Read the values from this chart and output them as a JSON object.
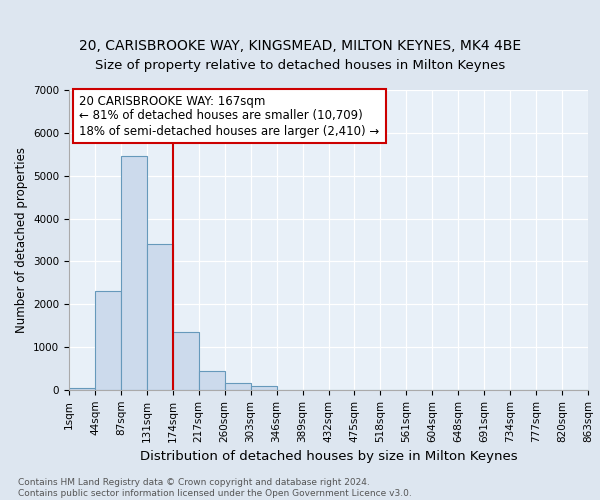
{
  "title_line1": "20, CARISBROOKE WAY, KINGSMEAD, MILTON KEYNES, MK4 4BE",
  "title_line2": "Size of property relative to detached houses in Milton Keynes",
  "xlabel": "Distribution of detached houses by size in Milton Keynes",
  "ylabel": "Number of detached properties",
  "footnote": "Contains HM Land Registry data © Crown copyright and database right 2024.\nContains public sector information licensed under the Open Government Licence v3.0.",
  "bin_labels": [
    "1sqm",
    "44sqm",
    "87sqm",
    "131sqm",
    "174sqm",
    "217sqm",
    "260sqm",
    "303sqm",
    "346sqm",
    "389sqm",
    "432sqm",
    "475sqm",
    "518sqm",
    "561sqm",
    "604sqm",
    "648sqm",
    "691sqm",
    "734sqm",
    "777sqm",
    "820sqm",
    "863sqm"
  ],
  "bar_values": [
    50,
    2300,
    5450,
    3400,
    1350,
    450,
    170,
    90,
    0,
    0,
    0,
    0,
    0,
    0,
    0,
    0,
    0,
    0,
    0,
    0
  ],
  "bar_color": "#ccdaec",
  "bar_edge_color": "#6699bb",
  "vline_x": 4.0,
  "vline_color": "#cc0000",
  "annotation_text": "20 CARISBROOKE WAY: 167sqm\n← 81% of detached houses are smaller (10,709)\n18% of semi-detached houses are larger (2,410) →",
  "annotation_box_color": "#ffffff",
  "annotation_box_edge": "#cc0000",
  "ylim": [
    0,
    7000
  ],
  "yticks": [
    0,
    1000,
    2000,
    3000,
    4000,
    5000,
    6000,
    7000
  ],
  "bg_color": "#dde6f0",
  "plot_bg_color": "#e8f0f8",
  "title1_fontsize": 10,
  "title2_fontsize": 9.5,
  "xlabel_fontsize": 9.5,
  "ylabel_fontsize": 8.5,
  "annot_fontsize": 8.5,
  "tick_fontsize": 7.5,
  "footnote_fontsize": 6.5
}
